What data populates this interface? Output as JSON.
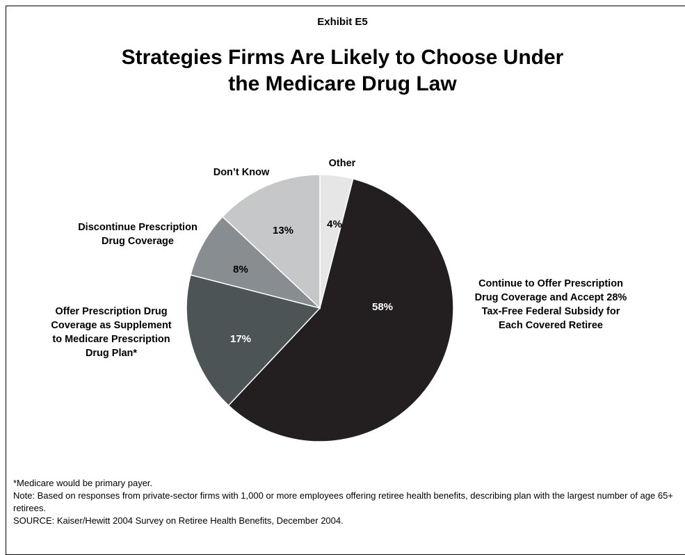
{
  "header": {
    "exhibit": "Exhibit E5",
    "title_line1": "Strategies Firms Are Likely to Choose Under",
    "title_line2": "the Medicare Drug Law"
  },
  "chart_data": {
    "type": "pie",
    "title": "Strategies Firms Are Likely to Choose Under the Medicare Drug Law",
    "slices": [
      {
        "label": "Other",
        "value": 4,
        "value_label": "4%",
        "color": "#e6e6e6",
        "text_color": "#000000"
      },
      {
        "label": "Continue to Offer Prescription Drug Coverage and Accept 28% Tax-Free Federal Subsidy for Each Covered Retiree",
        "value": 58,
        "value_label": "58%",
        "color": "#231f20",
        "text_color": "#ffffff"
      },
      {
        "label": "Offer Prescription Drug Coverage as Supplement to Medicare Prescription Drug Plan*",
        "value": 17,
        "value_label": "17%",
        "color": "#4d5456",
        "text_color": "#ffffff"
      },
      {
        "label": "Discontinue Prescription Drug Coverage",
        "value": 8,
        "value_label": "8%",
        "color": "#888d91",
        "text_color": "#000000"
      },
      {
        "label": "Don't Know",
        "value": 13,
        "value_label": "13%",
        "color": "#c6c7c8",
        "text_color": "#000000"
      }
    ],
    "category_labels": {
      "other": [
        "Other"
      ],
      "continue": [
        "Continue to Offer Prescription",
        "Drug Coverage and Accept 28%",
        "Tax-Free Federal Subsidy for",
        "Each Covered Retiree"
      ],
      "supplement": [
        "Offer Prescription Drug",
        "Coverage as Supplement",
        "to Medicare Prescription",
        "Drug Plan*"
      ],
      "discontinue": [
        "Discontinue Prescription",
        "Drug Coverage"
      ],
      "dont_know": [
        "Don’t Know"
      ]
    }
  },
  "footnotes": {
    "asterisk": "*Medicare would be primary payer.",
    "note": "Note: Based on responses from private-sector firms with 1,000 or more employees offering retiree health benefits, describing plan with the largest number of age 65+ retirees.",
    "source": "SOURCE: Kaiser/Hewitt 2004 Survey on Retiree Health Benefits, December 2004."
  }
}
